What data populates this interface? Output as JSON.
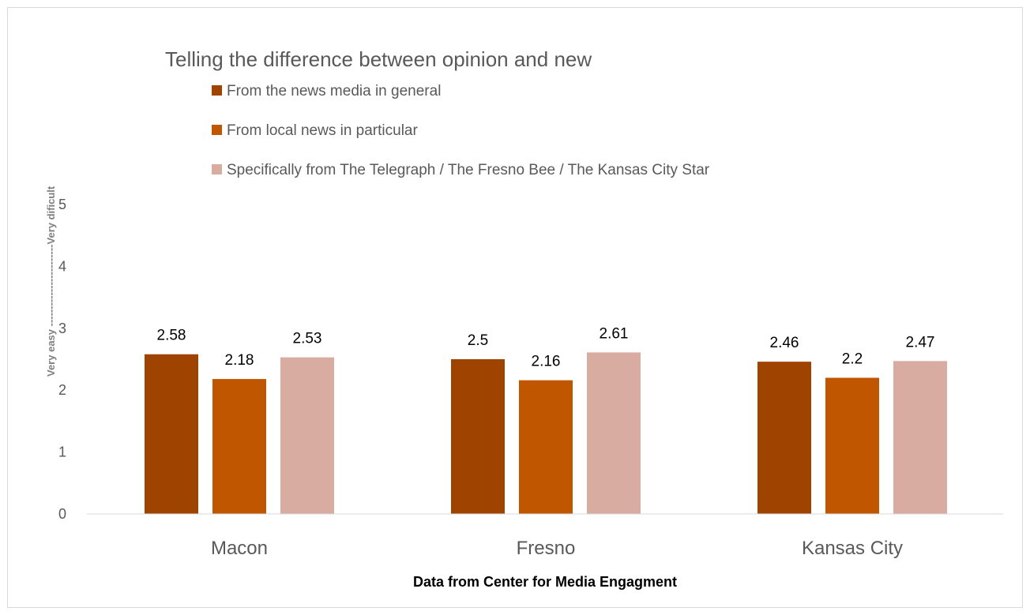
{
  "chart_data": {
    "type": "bar",
    "title": "Telling the difference between opinion and new",
    "xlabel": "Data from Center for Media Engagment",
    "ylabel": "Very easy ------------------------Very dificult",
    "categories": [
      "Macon",
      "Fresno",
      "Kansas City"
    ],
    "series": [
      {
        "name": "From the news media in general",
        "color": "#9e4300",
        "values": [
          2.58,
          2.5,
          2.46
        ]
      },
      {
        "name": "From local news in particular",
        "color": "#c05600",
        "values": [
          2.18,
          2.16,
          2.2
        ]
      },
      {
        "name": "Specifically from The Telegraph / The Fresno Bee / The Kansas City Star",
        "color": "#d9aca2",
        "values": [
          2.53,
          2.61,
          2.47
        ]
      }
    ],
    "data_labels": [
      [
        "2.58",
        "2.5",
        "2.46"
      ],
      [
        "2.18",
        "2.16",
        "2.2"
      ],
      [
        "2.53",
        "2.61",
        "2.47"
      ]
    ],
    "yticks": [
      "0",
      "1",
      "2",
      "3",
      "4",
      "5"
    ],
    "ylim": [
      0,
      5
    ],
    "grid": false,
    "legend_position": "top"
  }
}
